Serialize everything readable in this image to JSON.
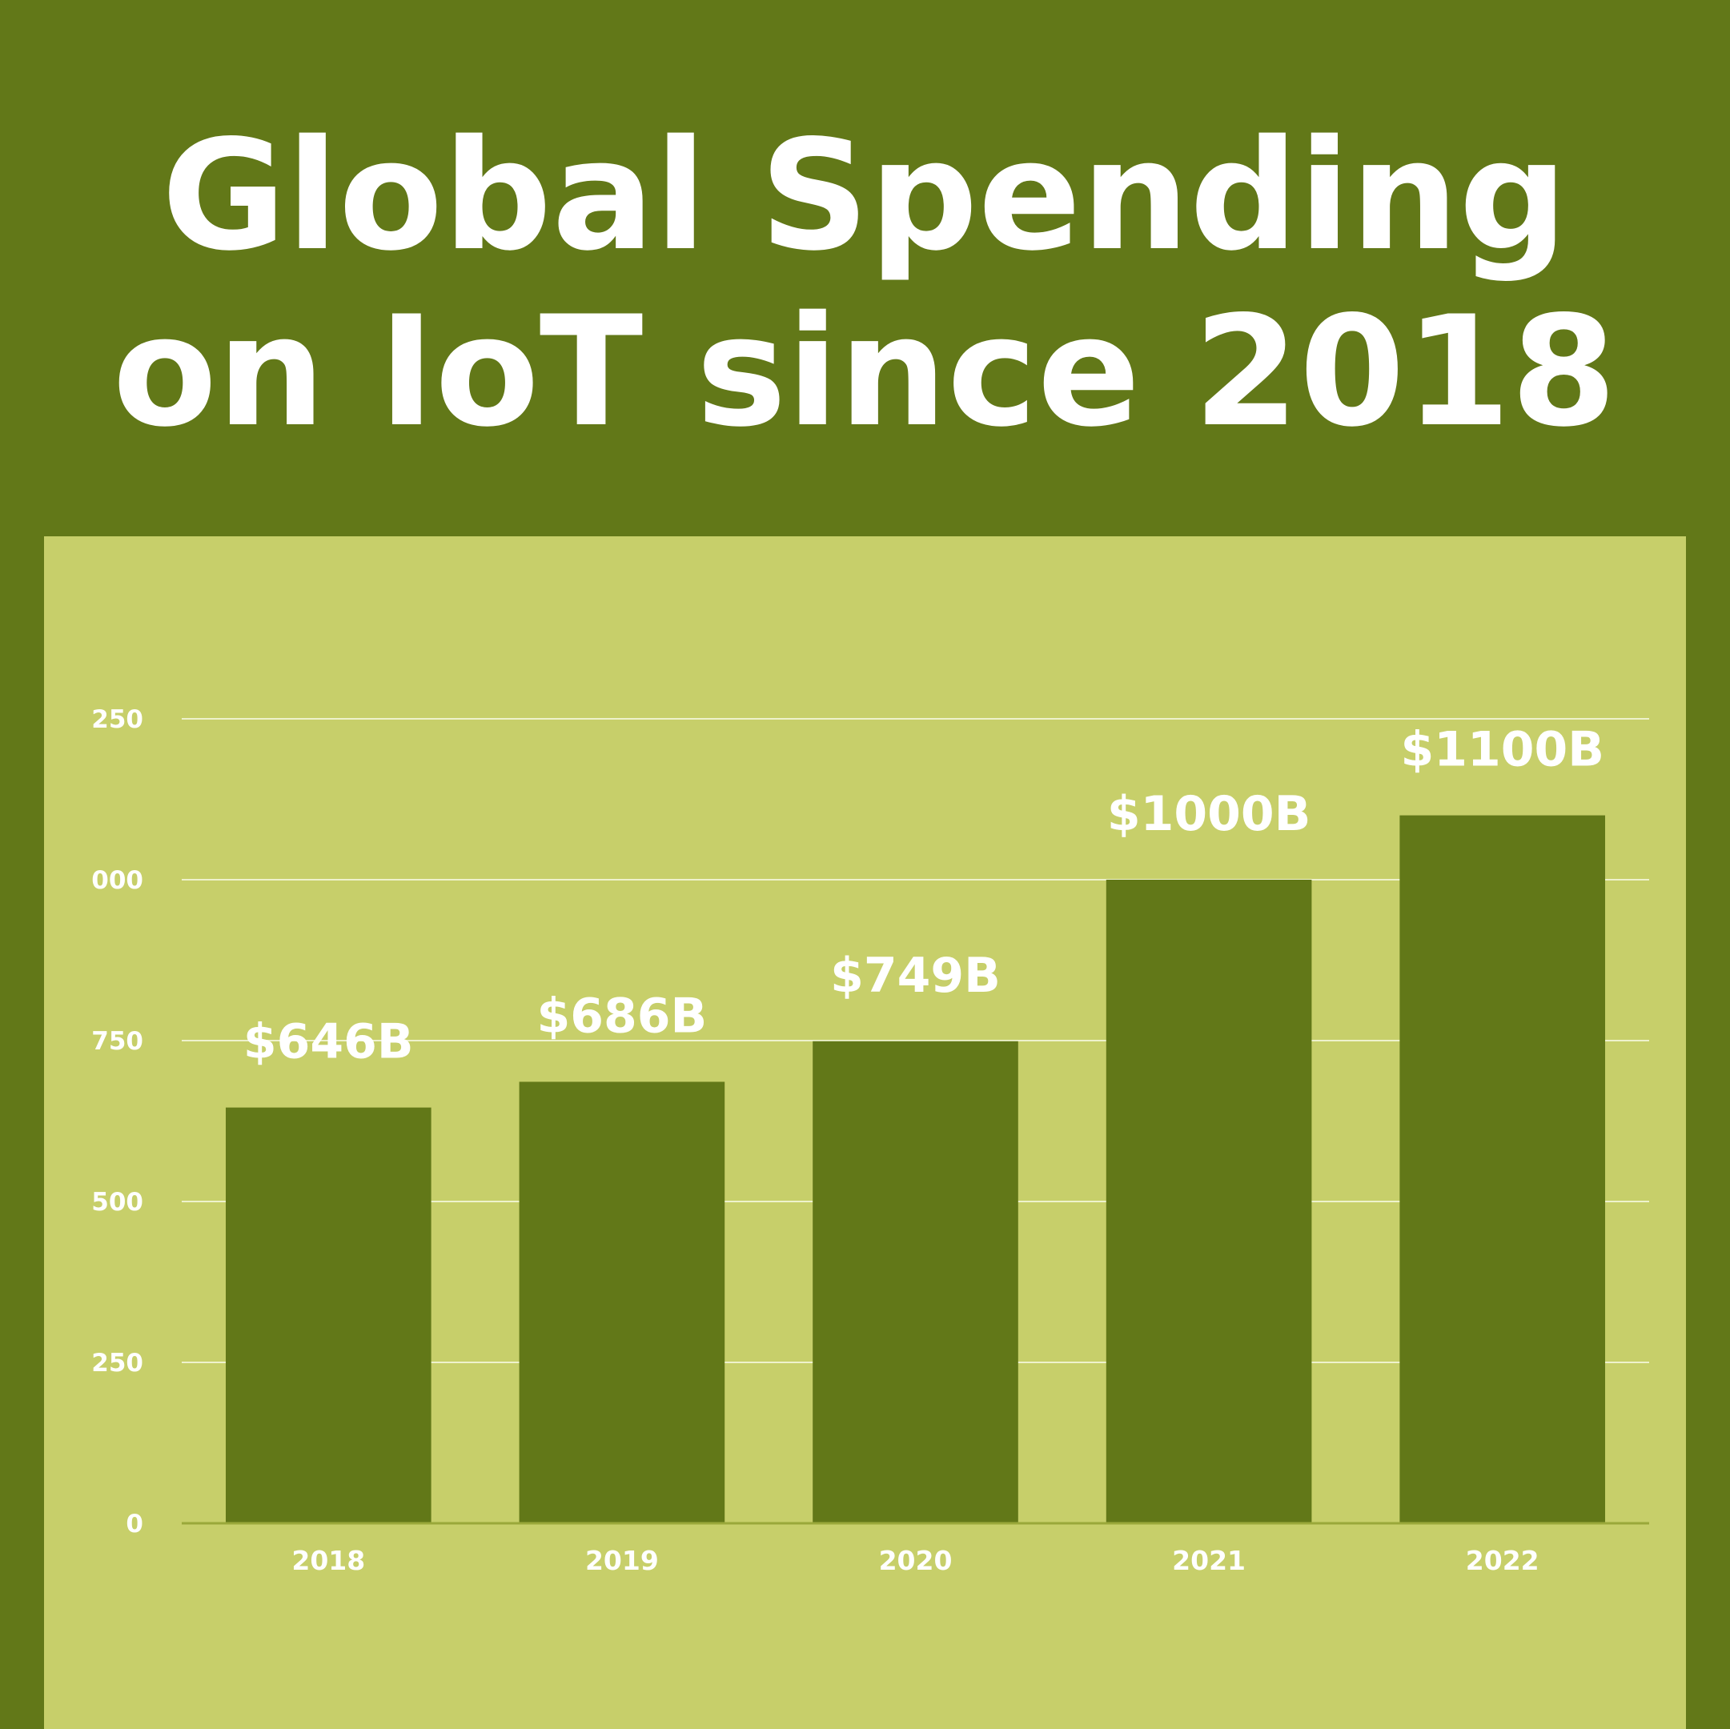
{
  "chart_data": {
    "type": "bar",
    "title": [
      "Global Spending",
      "on IoT since 2018"
    ],
    "categories": [
      "2018",
      "2019",
      "2020",
      "2021",
      "2022"
    ],
    "values": [
      646,
      686,
      749,
      1000,
      1100
    ],
    "value_labels": [
      "$646B",
      "$686B",
      "$749B",
      "$1000B",
      "$1100B"
    ],
    "color": "#627818",
    "ylim": [
      0,
      1250
    ],
    "yticks": [
      0,
      250,
      500,
      750,
      {
        "value": 1000,
        "label": "000"
      },
      {
        "value": 1250,
        "label": "250"
      }
    ],
    "grid": true
  }
}
